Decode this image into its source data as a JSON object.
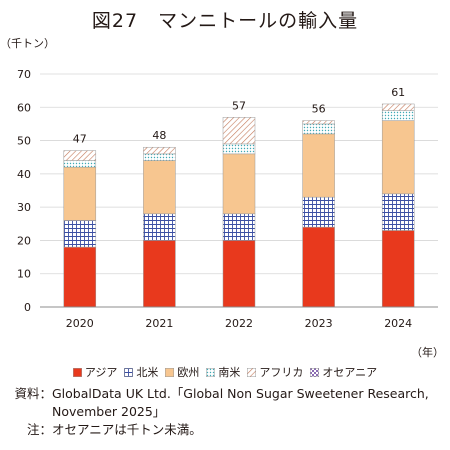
{
  "title": "図27　マンニトールの輸入量",
  "chart_data": {
    "type": "bar",
    "stacked": true,
    "title": "図27　マンニトールの輸入量",
    "ylabel": "（千トン）",
    "xlabel": "（年）",
    "ylim": [
      0,
      70
    ],
    "yticks": [
      0,
      10,
      20,
      30,
      40,
      50,
      60,
      70
    ],
    "categories": [
      "2020",
      "2021",
      "2022",
      "2023",
      "2024"
    ],
    "series": [
      {
        "name": "アジア",
        "values": [
          18,
          20,
          20,
          24,
          23
        ],
        "color": "#e8391d",
        "pattern": "solid"
      },
      {
        "name": "北米",
        "values": [
          8,
          8,
          8,
          9,
          11
        ],
        "color": "#3b4fa3",
        "pattern": "grid"
      },
      {
        "name": "欧州",
        "values": [
          16,
          16,
          18,
          19,
          22
        ],
        "color": "#f7c690",
        "pattern": "solid"
      },
      {
        "name": "南米",
        "values": [
          2,
          2,
          3,
          3,
          3
        ],
        "color": "#3fa9b5",
        "pattern": "dots"
      },
      {
        "name": "アフリカ",
        "values": [
          3,
          2,
          8,
          1,
          2
        ],
        "color": "#c47a5a",
        "pattern": "diagonal"
      },
      {
        "name": "オセアニア",
        "values": [
          0,
          0,
          0,
          0,
          0
        ],
        "color": "#8a6bb3",
        "pattern": "checker"
      }
    ],
    "totals": [
      "47",
      "48",
      "57",
      "56",
      "61"
    ],
    "legend_position": "bottom",
    "grid": true
  },
  "notes": [
    {
      "label": "資料：",
      "text": "GlobalData UK Ltd.「Global Non Sugar Sweetener Research, November 2025」"
    },
    {
      "label": "注：",
      "text": "オセアニアは千トン未満。"
    }
  ]
}
